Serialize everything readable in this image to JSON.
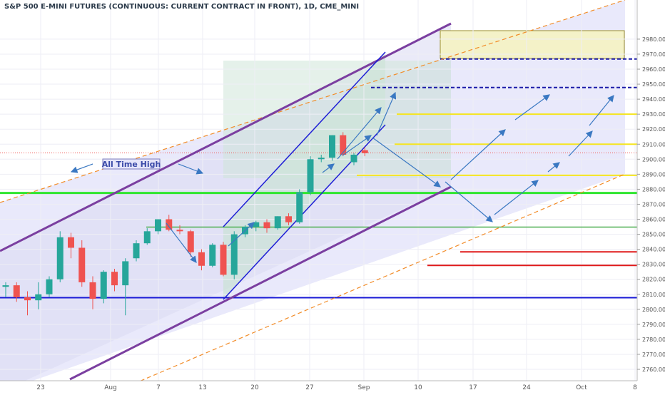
{
  "chart_data": {
    "type": "candlestick",
    "title": "S&P 500 E-MINI FUTURES (CONTINUOUS: CURRENT CONTRACT IN FRONT), 1D, CME_MINI",
    "x_tick_labels": [
      "23",
      "Aug",
      "7",
      "13",
      "20",
      "27",
      "Sep",
      "10",
      "17",
      "24",
      "Oct",
      "8"
    ],
    "y_tick_labels": [
      "2760.00",
      "2770.00",
      "2780.00",
      "2790.00",
      "2800.00",
      "2810.00",
      "2820.00",
      "2830.00",
      "2840.00",
      "2850.00",
      "2860.00",
      "2870.00",
      "2880.00",
      "2890.00",
      "2900.00",
      "2910.00",
      "2920.00",
      "2930.00",
      "2940.00",
      "2950.00",
      "2960.00",
      "2970.00",
      "2980.00"
    ],
    "ylim": [
      2755,
      2985
    ],
    "colors": {
      "up": "#26a69a",
      "down": "#ef5350",
      "channel_main": "#7b3fa0",
      "channel_outer": "#f28c28",
      "channel_inner": "#1f1fd6",
      "projection": "#3a78c2"
    },
    "candles": [
      {
        "o": 2815,
        "h": 2818,
        "l": 2808,
        "c": 2816
      },
      {
        "o": 2816,
        "h": 2818,
        "l": 2805,
        "c": 2808
      },
      {
        "o": 2808,
        "h": 2812,
        "l": 2796,
        "c": 2806
      },
      {
        "o": 2806,
        "h": 2818,
        "l": 2800,
        "c": 2810
      },
      {
        "o": 2810,
        "h": 2822,
        "l": 2808,
        "c": 2820
      },
      {
        "o": 2820,
        "h": 2852,
        "l": 2818,
        "c": 2848
      },
      {
        "o": 2848,
        "h": 2851,
        "l": 2834,
        "c": 2841
      },
      {
        "o": 2841,
        "h": 2846,
        "l": 2815,
        "c": 2818
      },
      {
        "o": 2818,
        "h": 2822,
        "l": 2800,
        "c": 2807
      },
      {
        "o": 2807,
        "h": 2826,
        "l": 2804,
        "c": 2825
      },
      {
        "o": 2825,
        "h": 2827,
        "l": 2812,
        "c": 2816
      },
      {
        "o": 2816,
        "h": 2834,
        "l": 2796,
        "c": 2832
      },
      {
        "o": 2834,
        "h": 2846,
        "l": 2832,
        "c": 2844
      },
      {
        "o": 2844,
        "h": 2854,
        "l": 2843,
        "c": 2852
      },
      {
        "o": 2852,
        "h": 2860,
        "l": 2850,
        "c": 2860
      },
      {
        "o": 2860,
        "h": 2863,
        "l": 2852,
        "c": 2853
      },
      {
        "o": 2853,
        "h": 2856,
        "l": 2850,
        "c": 2852
      },
      {
        "o": 2852,
        "h": 2853,
        "l": 2835,
        "c": 2838
      },
      {
        "o": 2838,
        "h": 2840,
        "l": 2826,
        "c": 2829
      },
      {
        "o": 2829,
        "h": 2844,
        "l": 2828,
        "c": 2843
      },
      {
        "o": 2843,
        "h": 2845,
        "l": 2822,
        "c": 2823
      },
      {
        "o": 2823,
        "h": 2852,
        "l": 2820,
        "c": 2850
      },
      {
        "o": 2850,
        "h": 2856,
        "l": 2848,
        "c": 2855
      },
      {
        "o": 2855,
        "h": 2859,
        "l": 2852,
        "c": 2858
      },
      {
        "o": 2858,
        "h": 2860,
        "l": 2851,
        "c": 2854
      },
      {
        "o": 2854,
        "h": 2862,
        "l": 2853,
        "c": 2862
      },
      {
        "o": 2862,
        "h": 2864,
        "l": 2856,
        "c": 2858
      },
      {
        "o": 2858,
        "h": 2880,
        "l": 2857,
        "c": 2878
      },
      {
        "o": 2878,
        "h": 2902,
        "l": 2876,
        "c": 2900
      },
      {
        "o": 2900,
        "h": 2903,
        "l": 2898,
        "c": 2901
      },
      {
        "o": 2901,
        "h": 2916,
        "l": 2899,
        "c": 2916
      },
      {
        "o": 2916,
        "h": 2918,
        "l": 2902,
        "c": 2903
      },
      {
        "o": 2898,
        "h": 2904,
        "l": 2896,
        "c": 2903
      },
      {
        "o": 2906,
        "h": 2908,
        "l": 2902,
        "c": 2904
      }
    ],
    "price_levels": [
      {
        "value": 2966.75,
        "label": "2966.75",
        "style": "dashed",
        "color": "#1a1aa8",
        "label_bg": "#ffffff",
        "label_color": "#1a1aa8"
      },
      {
        "value": 2947.75,
        "label": "2947.75",
        "style": "dashed",
        "color": "#1a1aa8",
        "label_bg": "#ffffff",
        "label_color": "#1a1aa8"
      },
      {
        "value": 2930.0,
        "label": "2930.00",
        "style": "solid",
        "color": "#f5e51f",
        "label_bg": "#f5e51f",
        "label_color": "#333333"
      },
      {
        "value": 2910.0,
        "label": "2910.00",
        "style": "solid",
        "color": "#f5e51f",
        "label_bg": "#f5e51f",
        "label_color": "#333333"
      },
      {
        "value": 2904.25,
        "label": "2904.25",
        "style": "dotted",
        "color": "#ef5350",
        "label_bg": "#ef5350",
        "label_color": "#ffffff"
      },
      {
        "value": 2889.25,
        "label": "2889.25",
        "style": "solid",
        "color": "#f5e51f",
        "label_bg": "#f5e51f",
        "label_color": "#333333"
      },
      {
        "value": 2877.5,
        "label": "",
        "style": "solid",
        "color": "#2ee62e",
        "label_bg": "#2ee62e",
        "label_color": "#2ee62e"
      },
      {
        "value": 2854.75,
        "label": "2854.75",
        "style": "solid",
        "color": "#4caf50",
        "label_bg": "#4caf50",
        "label_color": "#ffffff"
      },
      {
        "value": 2838.25,
        "label": "2838.25",
        "style": "solid",
        "color": "#e01a1a",
        "label_bg": "#e01a1a",
        "label_color": "#ffffff"
      },
      {
        "value": 2829.25,
        "label": "2829.25",
        "style": "solid",
        "color": "#e01a1a",
        "label_bg": "#e01a1a",
        "label_color": "#ffffff"
      },
      {
        "value": 2807.75,
        "label": "2807.75",
        "style": "solid",
        "color": "#1a1ad6",
        "label_bg": "#1a1ad6",
        "label_color": "#ffffff"
      }
    ],
    "annotations": [
      {
        "text": "All Time High"
      }
    ]
  }
}
